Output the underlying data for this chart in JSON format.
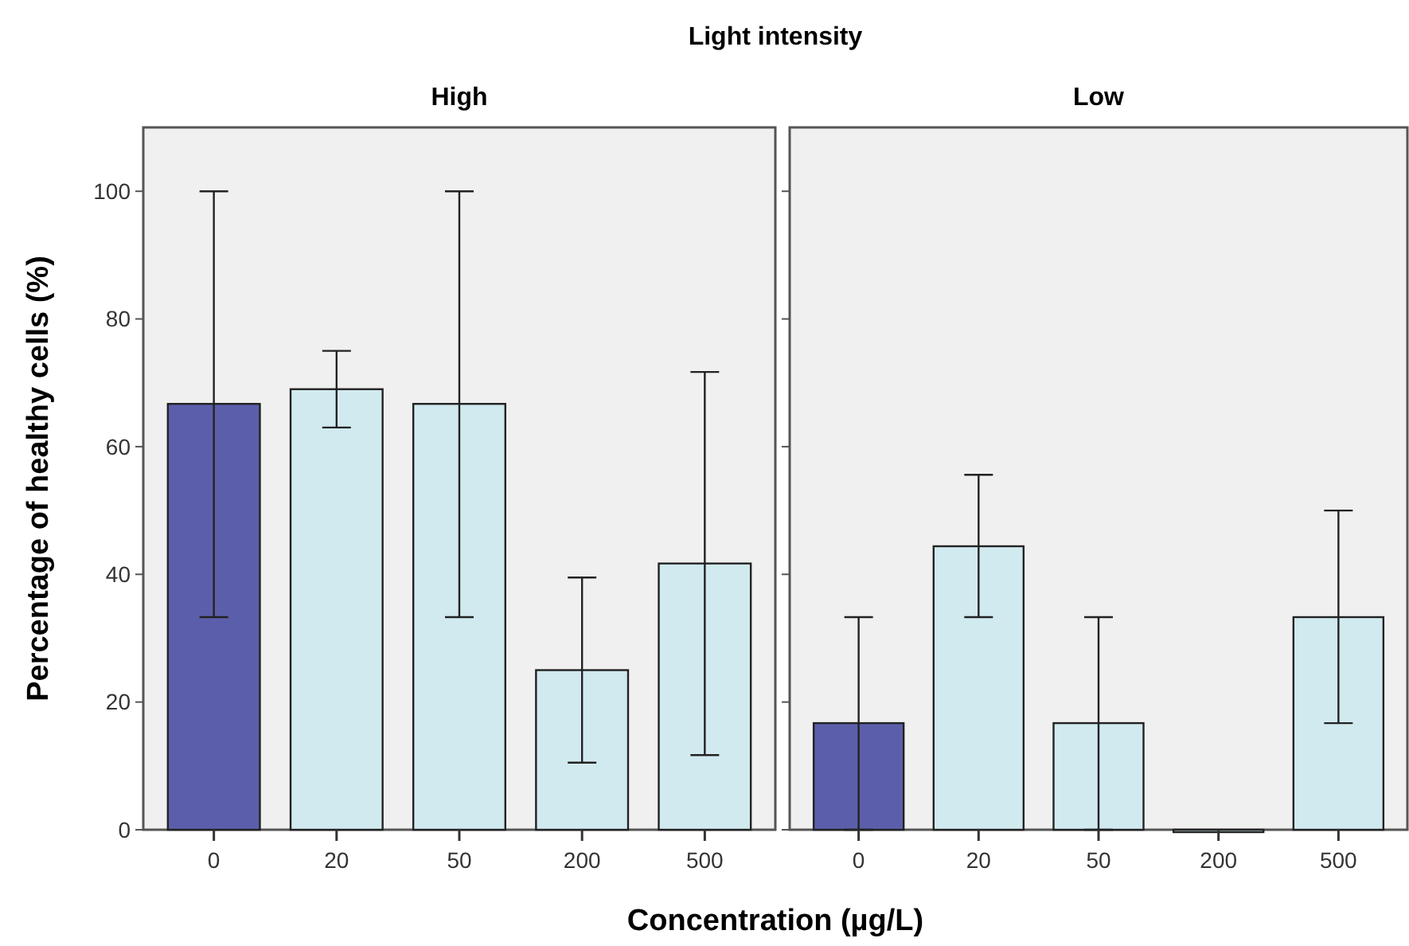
{
  "chart_data": [
    {
      "type": "bar",
      "title": "Light intensity",
      "subtitle": "High",
      "xlabel": "Concentration (µg/L)",
      "ylabel": "Percentage of healthy cells (%)",
      "categories": [
        "0",
        "20",
        "50",
        "200",
        "500"
      ],
      "values": [
        66.7,
        69,
        66.7,
        25,
        41.7
      ],
      "colors": [
        "#5b5fab",
        "#d1eaf0",
        "#d1eaf0",
        "#d1eaf0",
        "#d1eaf0"
      ],
      "errors": [
        [
          33.3,
          100
        ],
        [
          63,
          75
        ],
        [
          33.3,
          100
        ],
        [
          10.5,
          39.5
        ],
        [
          11.7,
          71.7
        ]
      ],
      "ylim": [
        0,
        110
      ],
      "yticks": [
        0,
        20,
        40,
        60,
        80,
        100
      ],
      "grid": false
    },
    {
      "type": "bar",
      "subtitle": "Low",
      "categories": [
        "0",
        "20",
        "50",
        "200",
        "500"
      ],
      "values": [
        16.7,
        44.4,
        16.7,
        0,
        33.3
      ],
      "colors": [
        "#5b5fab",
        "#d1eaf0",
        "#d1eaf0",
        "#d1eaf0",
        "#d1eaf0"
      ],
      "errors": [
        [
          0,
          33.3
        ],
        [
          33.3,
          55.6
        ],
        [
          0,
          33.3
        ],
        null,
        [
          16.7,
          50
        ]
      ],
      "ylim": [
        0,
        110
      ],
      "yticks": [
        0,
        20,
        40,
        60,
        80,
        100
      ],
      "tick_labels": "x",
      "grid": false
    }
  ]
}
